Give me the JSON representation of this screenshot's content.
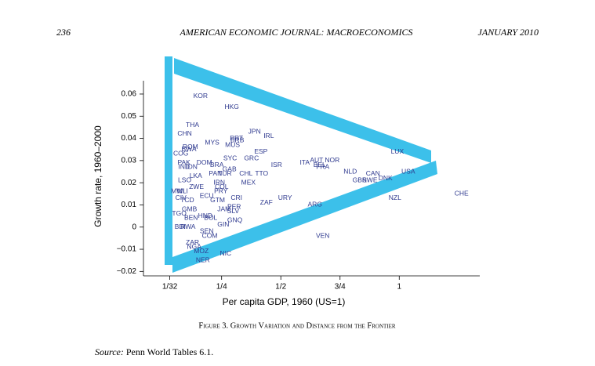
{
  "header": {
    "page": "236",
    "journal": "AMERICAN ECONOMIC JOURNAL: MACROECONOMICS",
    "date": "JANUARY 2010"
  },
  "chart_data": {
    "type": "scatter",
    "x_label": "Per capita GDP, 1960 (US=1)",
    "y_label": "Growth rate, 1960–2000",
    "color": "#2f3a8f",
    "xlim": [
      -0.08,
      1.34
    ],
    "ylim": [
      -0.022,
      0.066
    ],
    "xticks": [
      {
        "value": 0.03125,
        "label": "1/32"
      },
      {
        "value": 0.25,
        "label": "1/4"
      },
      {
        "value": 0.5,
        "label": "1/2"
      },
      {
        "value": 0.75,
        "label": "3/4"
      },
      1
    ],
    "yticks": [
      {
        "value": -0.02,
        "label": "−0.02"
      },
      {
        "value": -0.01,
        "label": "−0.01"
      },
      0,
      0.01,
      0.02,
      0.03,
      0.04,
      0.05,
      0.06
    ],
    "points": [
      {
        "label": "KOR",
        "x": 0.161,
        "y": 0.059
      },
      {
        "label": "HKG",
        "x": 0.293,
        "y": 0.054
      },
      {
        "label": "THA",
        "x": 0.127,
        "y": 0.046
      },
      {
        "label": "CHN",
        "x": 0.094,
        "y": 0.042
      },
      {
        "label": "MYS",
        "x": 0.21,
        "y": 0.038
      },
      {
        "label": "MUS",
        "x": 0.296,
        "y": 0.037
      },
      {
        "label": "PRT",
        "x": 0.313,
        "y": 0.04
      },
      {
        "label": "BRB",
        "x": 0.316,
        "y": 0.039
      },
      {
        "label": "JPN",
        "x": 0.389,
        "y": 0.043
      },
      {
        "label": "IRL",
        "x": 0.449,
        "y": 0.041
      },
      {
        "label": "ESP",
        "x": 0.416,
        "y": 0.034
      },
      {
        "label": "GRC",
        "x": 0.376,
        "y": 0.031
      },
      {
        "label": "SYC",
        "x": 0.286,
        "y": 0.031
      },
      {
        "label": "ROM",
        "x": 0.118,
        "y": 0.036
      },
      {
        "label": "BWA",
        "x": 0.112,
        "y": 0.035
      },
      {
        "label": "COG",
        "x": 0.078,
        "y": 0.033
      },
      {
        "label": "PAK",
        "x": 0.091,
        "y": 0.029
      },
      {
        "label": "DOM",
        "x": 0.177,
        "y": 0.029
      },
      {
        "label": "BRA",
        "x": 0.23,
        "y": 0.028
      },
      {
        "label": "IND",
        "x": 0.091,
        "y": 0.027
      },
      {
        "label": "IDN",
        "x": 0.124,
        "y": 0.027
      },
      {
        "label": "GAB",
        "x": 0.283,
        "y": 0.026
      },
      {
        "label": "PAN",
        "x": 0.224,
        "y": 0.024
      },
      {
        "label": "TUR",
        "x": 0.264,
        "y": 0.024
      },
      {
        "label": "CHL",
        "x": 0.353,
        "y": 0.024
      },
      {
        "label": "TTO",
        "x": 0.419,
        "y": 0.024
      },
      {
        "label": "LKA",
        "x": 0.141,
        "y": 0.023
      },
      {
        "label": "MEX",
        "x": 0.363,
        "y": 0.02
      },
      {
        "label": "ISR",
        "x": 0.482,
        "y": 0.028
      },
      {
        "label": "ITA",
        "x": 0.601,
        "y": 0.029
      },
      {
        "label": "AUT",
        "x": 0.651,
        "y": 0.03
      },
      {
        "label": "NOR",
        "x": 0.717,
        "y": 0.03
      },
      {
        "label": "BEL",
        "x": 0.664,
        "y": 0.028
      },
      {
        "label": "FRA",
        "x": 0.677,
        "y": 0.027
      },
      {
        "label": "LUX",
        "x": 0.992,
        "y": 0.034
      },
      {
        "label": "NLD",
        "x": 0.793,
        "y": 0.025
      },
      {
        "label": "CAN",
        "x": 0.889,
        "y": 0.024
      },
      {
        "label": "GBR",
        "x": 0.833,
        "y": 0.021
      },
      {
        "label": "SWE",
        "x": 0.876,
        "y": 0.021
      },
      {
        "label": "DNK",
        "x": 0.942,
        "y": 0.022
      },
      {
        "label": "USA",
        "x": 1.038,
        "y": 0.025
      },
      {
        "label": "NZL",
        "x": 0.982,
        "y": 0.013
      },
      {
        "label": "CHE",
        "x": 1.263,
        "y": 0.015
      },
      {
        "label": "URY",
        "x": 0.518,
        "y": 0.013
      },
      {
        "label": "ZAF",
        "x": 0.439,
        "y": 0.011
      },
      {
        "label": "ARG",
        "x": 0.644,
        "y": 0.01
      },
      {
        "label": "LSO",
        "x": 0.094,
        "y": 0.021
      },
      {
        "label": "ZWE",
        "x": 0.144,
        "y": 0.018
      },
      {
        "label": "IRN",
        "x": 0.24,
        "y": 0.02
      },
      {
        "label": "COL",
        "x": 0.25,
        "y": 0.018
      },
      {
        "label": "PRY",
        "x": 0.247,
        "y": 0.016
      },
      {
        "label": "CRI",
        "x": 0.313,
        "y": 0.013
      },
      {
        "label": "GTM",
        "x": 0.233,
        "y": 0.012
      },
      {
        "label": "ECU",
        "x": 0.187,
        "y": 0.014
      },
      {
        "label": "MWI",
        "x": 0.065,
        "y": 0.016
      },
      {
        "label": "MLI",
        "x": 0.085,
        "y": 0.016
      },
      {
        "label": "CIV",
        "x": 0.078,
        "y": 0.013
      },
      {
        "label": "TCD",
        "x": 0.105,
        "y": 0.012
      },
      {
        "label": "PER",
        "x": 0.303,
        "y": 0.009
      },
      {
        "label": "JAM",
        "x": 0.26,
        "y": 0.008
      },
      {
        "label": "SLV",
        "x": 0.299,
        "y": 0.007
      },
      {
        "label": "GMB",
        "x": 0.114,
        "y": 0.008
      },
      {
        "label": "TGO",
        "x": 0.071,
        "y": 0.006
      },
      {
        "label": "HND",
        "x": 0.181,
        "y": 0.005
      },
      {
        "label": "BEN",
        "x": 0.121,
        "y": 0.004
      },
      {
        "label": "BOL",
        "x": 0.204,
        "y": 0.004
      },
      {
        "label": "GNQ",
        "x": 0.306,
        "y": 0.003
      },
      {
        "label": "GIN",
        "x": 0.257,
        "y": 0.001
      },
      {
        "label": "BDI",
        "x": 0.075,
        "y": 0.0
      },
      {
        "label": "RWA",
        "x": 0.108,
        "y": 0.0
      },
      {
        "label": "SEN",
        "x": 0.187,
        "y": -0.002
      },
      {
        "label": "COM",
        "x": 0.2,
        "y": -0.004
      },
      {
        "label": "VEN",
        "x": 0.677,
        "y": -0.004
      },
      {
        "label": "ZAR",
        "x": 0.127,
        "y": -0.007
      },
      {
        "label": "NGA",
        "x": 0.134,
        "y": -0.009
      },
      {
        "label": "MOZ",
        "x": 0.164,
        "y": -0.011
      },
      {
        "label": "NIC",
        "x": 0.267,
        "y": -0.012
      },
      {
        "label": "NER",
        "x": 0.171,
        "y": -0.015
      }
    ]
  },
  "caption": "Figure 3. Growth Variation and Distance from the Frontier",
  "source_label": "Source:",
  "source_text": "Penn World Tables 6.1."
}
